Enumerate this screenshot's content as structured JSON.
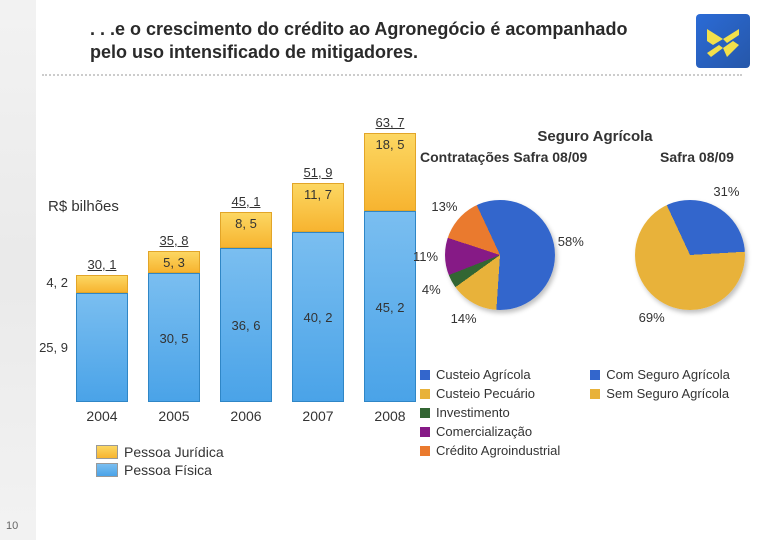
{
  "slide_number": "10",
  "title": ". . .e o crescimento do crédito ao Agronegócio é acompanhado pelo uso intensificado de mitigadores.",
  "y_axis_label": "R$ bilhões",
  "barchart": {
    "type": "stacked-bar",
    "categories": [
      "2004",
      "2005",
      "2006",
      "2007",
      "2008"
    ],
    "totals": [
      "30, 1",
      "35, 8",
      "45, 1",
      "51, 9",
      "63, 7"
    ],
    "pj_vals": [
      "4, 2",
      "5, 3",
      "8, 5",
      "11, 7",
      "18, 5"
    ],
    "pf_vals": [
      "25, 9",
      "30, 5",
      "36, 6",
      "40, 2",
      "45, 2"
    ],
    "totals_num": [
      30.1,
      35.8,
      45.1,
      51.9,
      63.7
    ],
    "pj_num": [
      4.2,
      5.3,
      8.5,
      11.7,
      18.5
    ],
    "pf_num": [
      25.9,
      30.5,
      36.6,
      40.2,
      45.2
    ],
    "ymax": 64,
    "pj_color": "#f9c547",
    "pf_color": "#5fb0ec",
    "legend": {
      "pj": "Pessoa Jurídica",
      "pf": "Pessoa Física"
    }
  },
  "right_panel": {
    "title": "Seguro Agrícola",
    "pie1": {
      "title": "Contratações Safra 08/09",
      "slices": [
        {
          "label": "Custeio Agrícola",
          "pct": 58,
          "color": "#3366cc"
        },
        {
          "label": "Custeio Pecuário",
          "pct": 14,
          "color": "#e8b23a"
        },
        {
          "label": "Investimento",
          "pct": 4,
          "color": "#336633"
        },
        {
          "label": "Comercialização",
          "pct": 11,
          "color": "#861a86"
        },
        {
          "label": "Crédito Agroindustrial",
          "pct": 13,
          "color": "#ea7a2e"
        }
      ]
    },
    "pie2": {
      "title": "Safra 08/09",
      "slices": [
        {
          "label": "Com Seguro Agrícola",
          "pct": 31,
          "color": "#3366cc"
        },
        {
          "label": "Sem Seguro Agrícola",
          "pct": 69,
          "color": "#e8b23a"
        }
      ]
    }
  }
}
